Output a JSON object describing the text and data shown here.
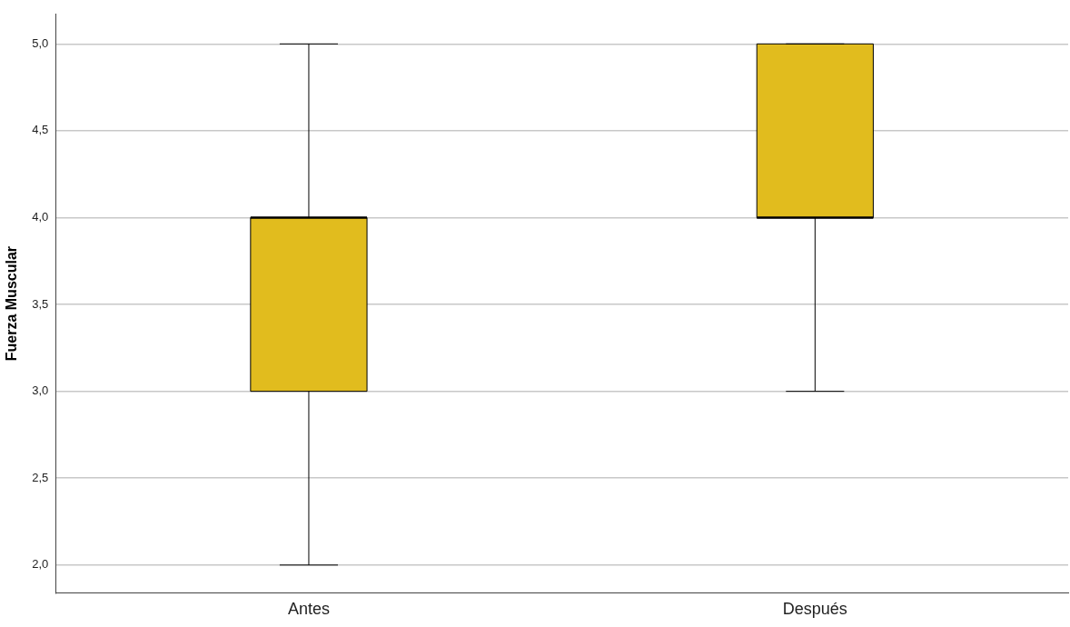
{
  "chart_data": {
    "type": "box",
    "ylabel": "Fuerza Muscular",
    "categories": [
      "Antes",
      "Después"
    ],
    "boxes": [
      {
        "low": 2,
        "q1": 3,
        "median": 4,
        "q3": 4,
        "high": 5
      },
      {
        "low": 3,
        "q1": 4,
        "median": 4,
        "q3": 5,
        "high": 5
      }
    ],
    "color": "#e1bc1e",
    "ylim": [
      1.84,
      5.17
    ],
    "yticks": [
      {
        "value": 2,
        "label": "2,0"
      },
      {
        "value": 2.5,
        "label": "2,5"
      },
      {
        "value": 3,
        "label": "3,0"
      },
      {
        "value": 3.5,
        "label": "3,5"
      },
      {
        "value": 4,
        "label": "4,0"
      },
      {
        "value": 4.5,
        "label": "4,5"
      },
      {
        "value": 5,
        "label": "5,0"
      }
    ],
    "grid": "y",
    "legend": false
  }
}
